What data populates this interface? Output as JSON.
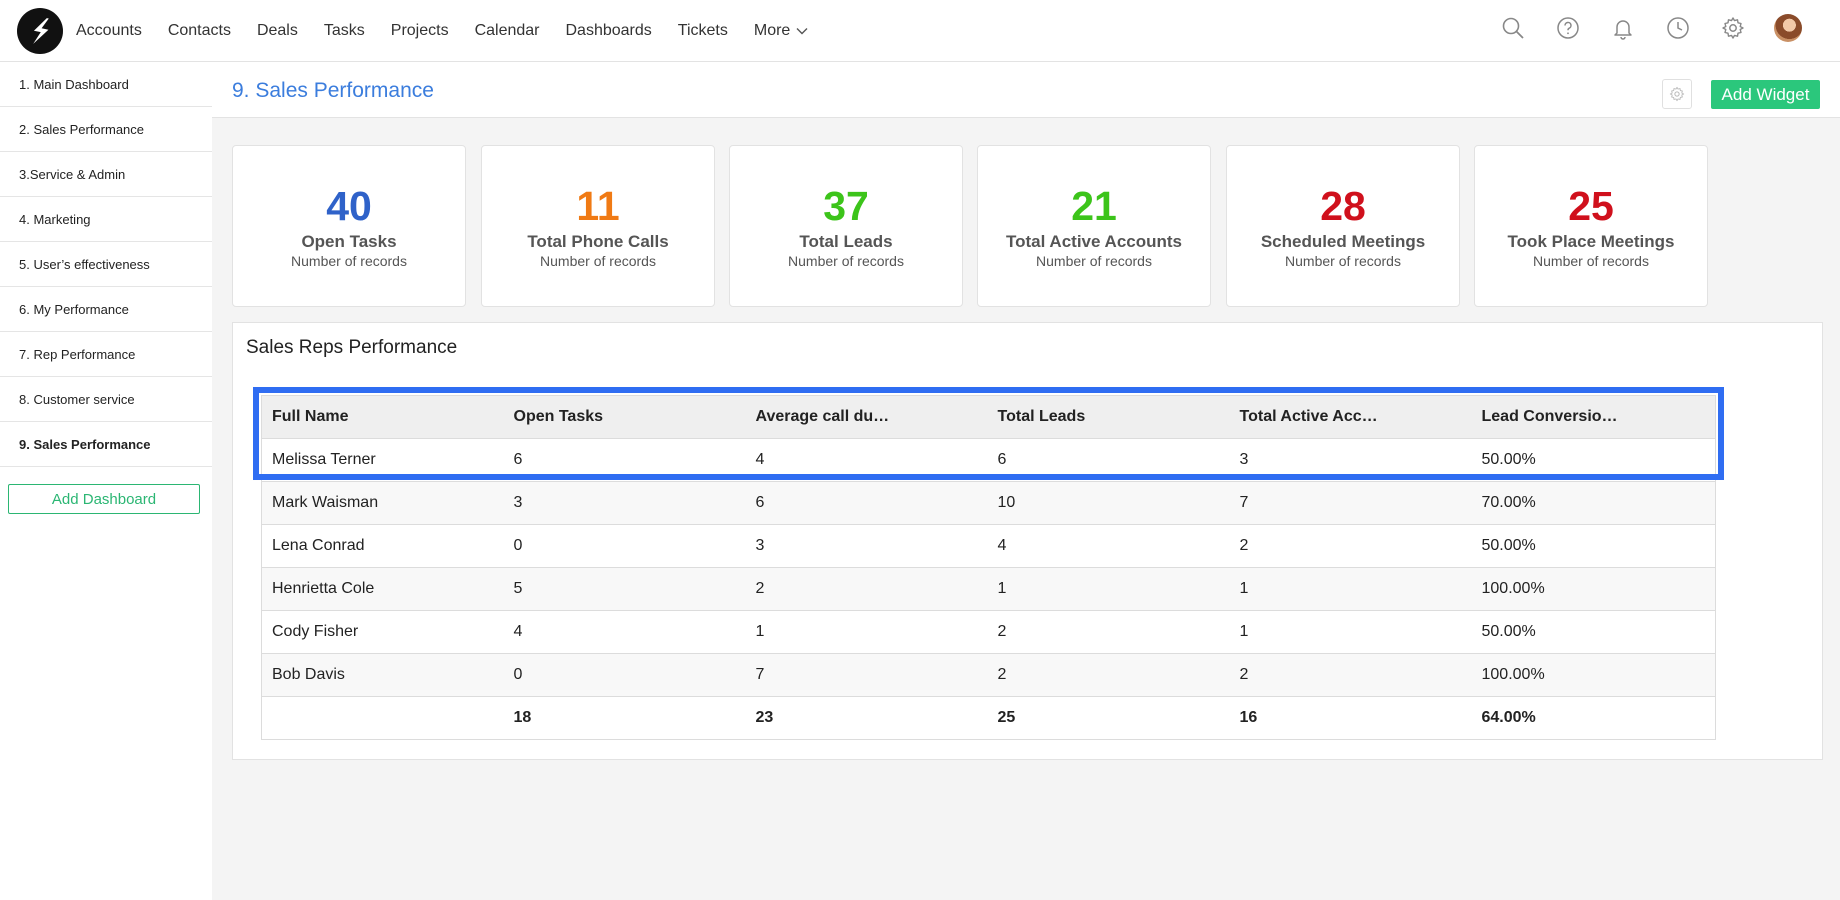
{
  "nav": {
    "links": [
      "Accounts",
      "Contacts",
      "Deals",
      "Tasks",
      "Projects",
      "Calendar",
      "Dashboards",
      "Tickets",
      "More"
    ]
  },
  "sidebar": {
    "items": [
      {
        "label": "1. Main Dashboard",
        "active": false
      },
      {
        "label": "2. Sales Performance",
        "active": false
      },
      {
        "label": "3.Service & Admin",
        "active": false
      },
      {
        "label": "4. Marketing",
        "active": false
      },
      {
        "label": "5. User’s effectiveness",
        "active": false
      },
      {
        "label": "6. My Performance",
        "active": false
      },
      {
        "label": "7. Rep Performance",
        "active": false
      },
      {
        "label": "8. Customer service",
        "active": false
      },
      {
        "label": "9. Sales Performance",
        "active": true
      }
    ],
    "add_button": "Add Dashboard"
  },
  "header": {
    "title": "9. Sales Performance",
    "add_widget": "Add Widget"
  },
  "kpis": [
    {
      "value": "40",
      "label": "Open Tasks",
      "sub": "Number of records",
      "color": "#2f62c9"
    },
    {
      "value": "11",
      "label": "Total Phone Calls",
      "sub": "Number of records",
      "color": "#f07a14"
    },
    {
      "value": "37",
      "label": "Total Leads",
      "sub": "Number of records",
      "color": "#3cc41a"
    },
    {
      "value": "21",
      "label": "Total Active Accounts",
      "sub": "Number of records",
      "color": "#3cc41a"
    },
    {
      "value": "28",
      "label": "Scheduled Meetings",
      "sub": "Number of records",
      "color": "#d0101c"
    },
    {
      "value": "25",
      "label": "Took Place Meetings",
      "sub": "Number of records",
      "color": "#d0101c"
    }
  ],
  "table": {
    "title": "Sales Reps Performance",
    "columns": [
      "Full Name",
      "Open Tasks",
      "Average call du…",
      "Total Leads",
      "Total Active Acc…",
      "Lead Conversio…"
    ],
    "rows": [
      [
        "Melissa Terner",
        "6",
        "4",
        "6",
        "3",
        "50.00%"
      ],
      [
        "Mark Waisman",
        "3",
        "6",
        "10",
        "7",
        "70.00%"
      ],
      [
        "Lena Conrad",
        "0",
        "3",
        "4",
        "2",
        "50.00%"
      ],
      [
        "Henrietta Cole",
        "5",
        "2",
        "1",
        "1",
        "100.00%"
      ],
      [
        "Cody Fisher",
        "4",
        "1",
        "2",
        "1",
        "50.00%"
      ],
      [
        "Bob Davis",
        "0",
        "7",
        "2",
        "2",
        "100.00%"
      ]
    ],
    "totals": [
      "",
      "18",
      "23",
      "25",
      "16",
      "64.00%"
    ],
    "highlight_color": "#2f6df2"
  },
  "colors": {
    "accent_blue": "#3b7ddd",
    "accent_green": "#2bc77c"
  }
}
